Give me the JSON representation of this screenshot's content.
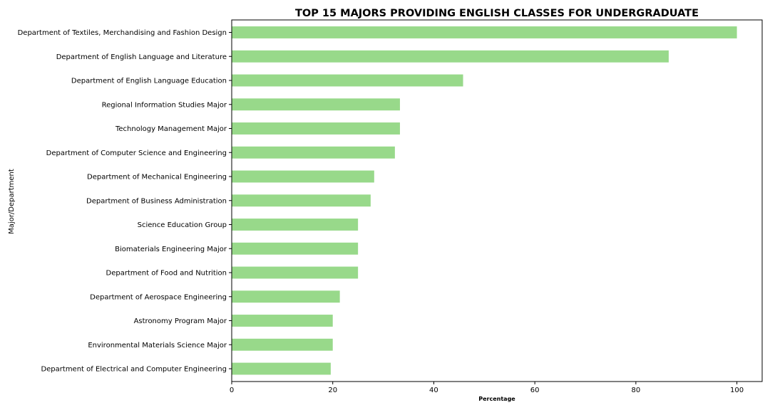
{
  "chart_data": {
    "type": "bar",
    "orientation": "horizontal",
    "title": "TOP 15 MAJORS PROVIDING ENGLISH CLASSES FOR UNDERGRADUATE",
    "xlabel": "Percentage",
    "ylabel": "Major/Department",
    "xlim": [
      0,
      105
    ],
    "xticks": [
      0,
      20,
      40,
      60,
      80,
      100
    ],
    "bar_color": "#98d98a",
    "grid": false,
    "categories": [
      "Department of Textiles, Merchandising and Fashion Design",
      "Department of English Language and Literature",
      "Department of English Language Education",
      "Regional Information Studies Major",
      "Technology Management Major",
      "Department of Computer Science and Engineering",
      "Department of Mechanical Engineering",
      "Department of Business Administration",
      "Science Education Group",
      "Biomaterials Engineering Major",
      "Department of Food and Nutrition",
      "Department of Aerospace Engineering",
      "Astronomy Program Major",
      "Environmental Materials Science Major",
      "Department of Electrical and Computer Engineering"
    ],
    "values": [
      100,
      86.5,
      45.8,
      33.3,
      33.3,
      32.3,
      28.2,
      27.5,
      25.0,
      25.0,
      25.0,
      21.4,
      20.0,
      20.0,
      19.6
    ]
  }
}
